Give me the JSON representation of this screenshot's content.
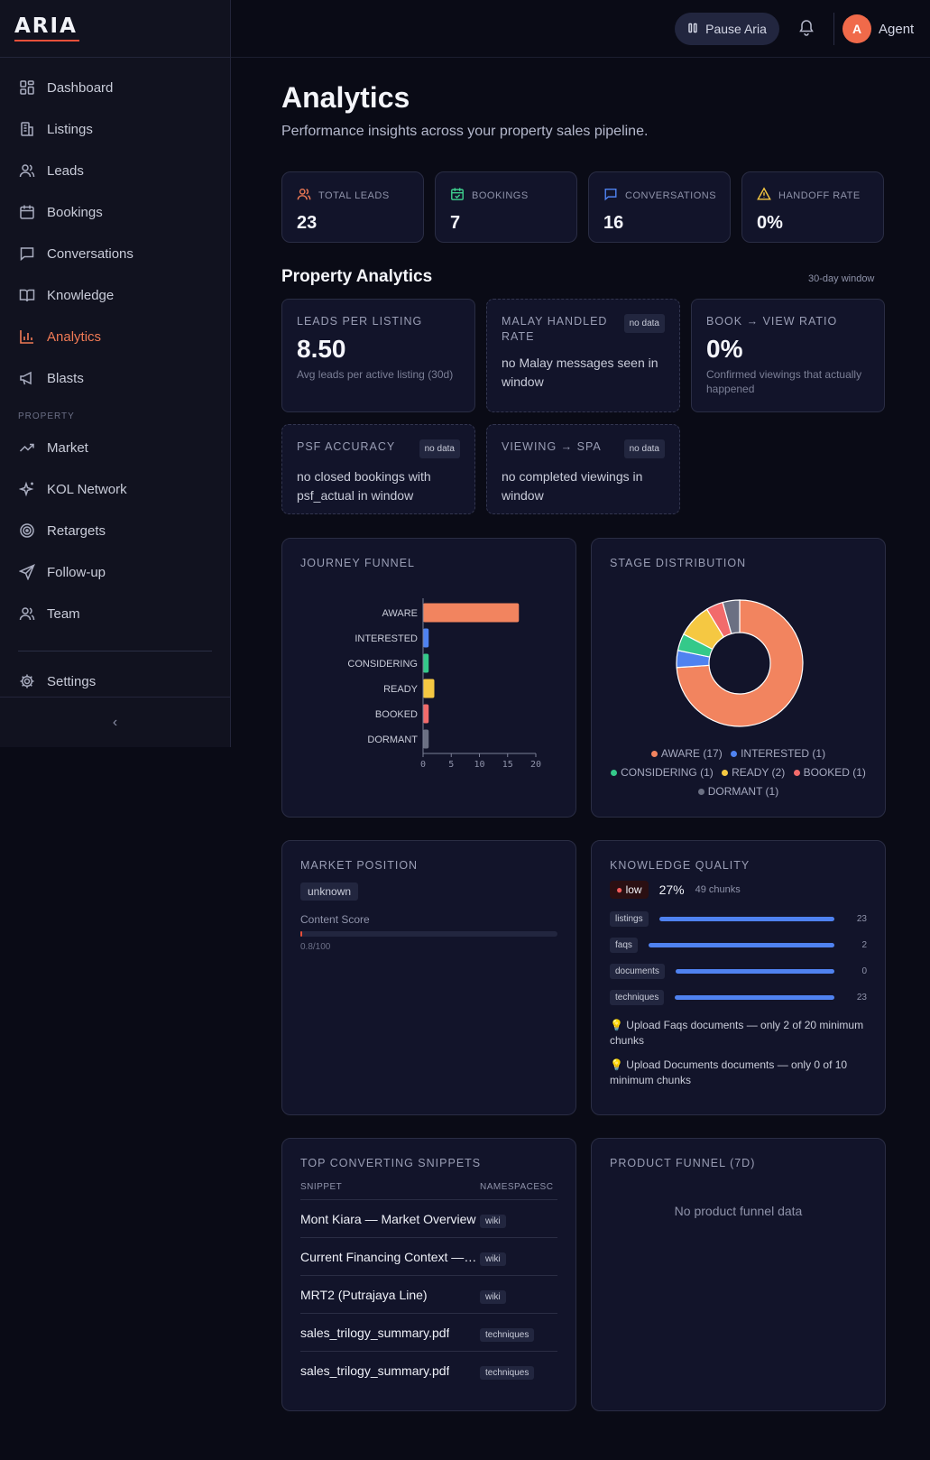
{
  "app": {
    "logo": "ARIA"
  },
  "sidebar": {
    "items": [
      {
        "label": "Dashboard",
        "icon": "dashboard-icon"
      },
      {
        "label": "Listings",
        "icon": "building-icon"
      },
      {
        "label": "Leads",
        "icon": "users-icon"
      },
      {
        "label": "Bookings",
        "icon": "calendar-icon"
      },
      {
        "label": "Conversations",
        "icon": "chat-icon"
      },
      {
        "label": "Knowledge",
        "icon": "book-icon"
      },
      {
        "label": "Analytics",
        "icon": "chart-icon",
        "active": true
      },
      {
        "label": "Blasts",
        "icon": "megaphone-icon"
      }
    ],
    "section_label": "PROPERTY",
    "property_items": [
      {
        "label": "Market",
        "icon": "trend-icon"
      },
      {
        "label": "KOL Network",
        "icon": "sparkles-icon"
      },
      {
        "label": "Retargets",
        "icon": "target-icon"
      },
      {
        "label": "Follow-up",
        "icon": "send-icon"
      },
      {
        "label": "Team",
        "icon": "team-icon"
      }
    ],
    "settings": "Settings",
    "collapse_icon": "chevron-left-icon"
  },
  "topbar": {
    "pause_label": "Pause Aria",
    "avatar_initial": "A",
    "user_name": "Agent"
  },
  "page": {
    "title": "Analytics",
    "subtitle": "Performance insights across your property sales pipeline."
  },
  "stats": [
    {
      "label": "TOTAL LEADS",
      "value": "23",
      "icon": "users-icon",
      "color": "#f07a55"
    },
    {
      "label": "BOOKINGS",
      "value": "7",
      "icon": "calendar-icon",
      "color": "#3ecf8e"
    },
    {
      "label": "CONVERSATIONS",
      "value": "16",
      "icon": "chat-icon",
      "color": "#4f82f0"
    },
    {
      "label": "HANDOFF RATE",
      "value": "0%",
      "icon": "warning-icon",
      "color": "#f5c842"
    }
  ],
  "property": {
    "title": "Property Analytics",
    "window": "30-day window",
    "leads_per_listing": {
      "label": "LEADS PER LISTING",
      "value": "8.50",
      "note": "Avg leads per active listing (30d)"
    },
    "malay": {
      "label": "MALAY HANDLED RATE",
      "badge": "no data",
      "text": "no Malay messages seen in window"
    },
    "book_view": {
      "label": "BOOK → VIEW RATIO",
      "value": "0%",
      "note": "Confirmed viewings that actually happened"
    },
    "psf": {
      "label": "PSF ACCURACY",
      "badge": "no data",
      "text": "no closed bookings with psf_actual in window"
    },
    "viewing_spa": {
      "label": "VIEWING → SPA",
      "badge": "no data",
      "text": "no completed viewings in window"
    }
  },
  "funnel": {
    "title": "JOURNEY FUNNEL"
  },
  "stage": {
    "title": "STAGE DISTRIBUTION"
  },
  "chart_data": [
    {
      "type": "bar",
      "orientation": "horizontal",
      "categories": [
        "AWARE",
        "INTERESTED",
        "CONSIDERING",
        "READY",
        "BOOKED",
        "DORMANT"
      ],
      "values": [
        17,
        1,
        1,
        2,
        1,
        1
      ],
      "colors": [
        "#f2845f",
        "#4f82f0",
        "#34c98a",
        "#f5c842",
        "#f26b6b",
        "#6b7083"
      ],
      "xlim": [
        0,
        20
      ],
      "xticks": [
        0,
        5,
        10,
        15,
        20
      ]
    },
    {
      "type": "pie",
      "donut": true,
      "labels": [
        "AWARE",
        "INTERESTED",
        "CONSIDERING",
        "READY",
        "BOOKED",
        "DORMANT"
      ],
      "values": [
        17,
        1,
        1,
        2,
        1,
        1
      ],
      "colors": [
        "#f2845f",
        "#4f82f0",
        "#34c98a",
        "#f5c842",
        "#f26b6b",
        "#6b7083"
      ],
      "legend": [
        "AWARE (17)",
        "INTERESTED (1)",
        "CONSIDERING (1)",
        "READY (2)",
        "BOOKED (1)",
        "DORMANT (1)"
      ]
    }
  ],
  "market": {
    "title": "MARKET POSITION",
    "position": "unknown",
    "score_label": "Content Score",
    "score_text": "0.8/100",
    "score_fraction": 0.008
  },
  "knowledge": {
    "title": "KNOWLEDGE QUALITY",
    "level": "low",
    "percent": "27%",
    "chunks": "49 chunks",
    "rows": [
      {
        "tag": "listings",
        "count": "23"
      },
      {
        "tag": "faqs",
        "count": "2"
      },
      {
        "tag": "documents",
        "count": "0"
      },
      {
        "tag": "techniques",
        "count": "23"
      }
    ],
    "tips": [
      "Upload Faqs documents — only 2 of 20 minimum chunks",
      "Upload Documents documents — only 0 of 10 minimum chunks"
    ]
  },
  "snippets": {
    "title": "TOP CONVERTING SNIPPETS",
    "col_snippet": "SNIPPET",
    "col_namespace": "NAMESPACESC",
    "rows": [
      {
        "name": "Mont Kiara — Market Overview",
        "ns": "wiki"
      },
      {
        "name": "Current Financing Context — Malaysia",
        "ns": "wiki"
      },
      {
        "name": "MRT2 (Putrajaya Line)",
        "ns": "wiki"
      },
      {
        "name": "sales_trilogy_summary.pdf",
        "ns": "techniques"
      },
      {
        "name": "sales_trilogy_summary.pdf",
        "ns": "techniques"
      }
    ]
  },
  "product_funnel": {
    "title": "PRODUCT FUNNEL (7D)",
    "empty": "No product funnel data"
  }
}
